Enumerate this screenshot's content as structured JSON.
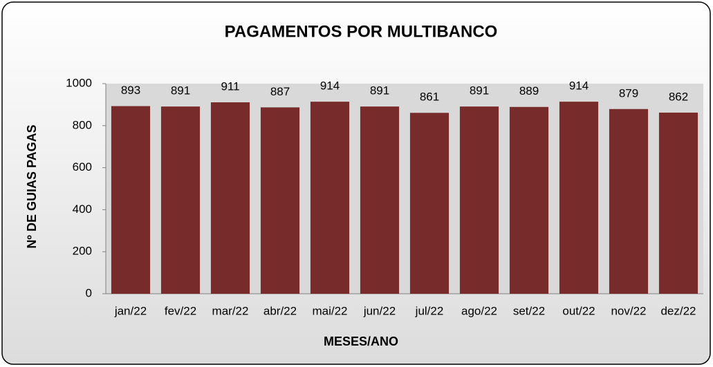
{
  "chart_data": {
    "type": "bar",
    "title": "PAGAMENTOS POR MULTIBANCO",
    "x_label": "MESES/ANO",
    "y_label": "Nº DE GUIAS PAGAS",
    "categories": [
      "jan/22",
      "fev/22",
      "mar/22",
      "abr/22",
      "mai/22",
      "jun/22",
      "jul/22",
      "ago/22",
      "set/22",
      "out/22",
      "nov/22",
      "dez/22"
    ],
    "values": [
      893,
      891,
      911,
      887,
      914,
      891,
      861,
      891,
      889,
      914,
      879,
      862
    ],
    "color": "#772b2b",
    "ylim": [
      0,
      1000
    ],
    "yticks": [
      0,
      200,
      400,
      600,
      800,
      1000
    ],
    "grid": false
  }
}
